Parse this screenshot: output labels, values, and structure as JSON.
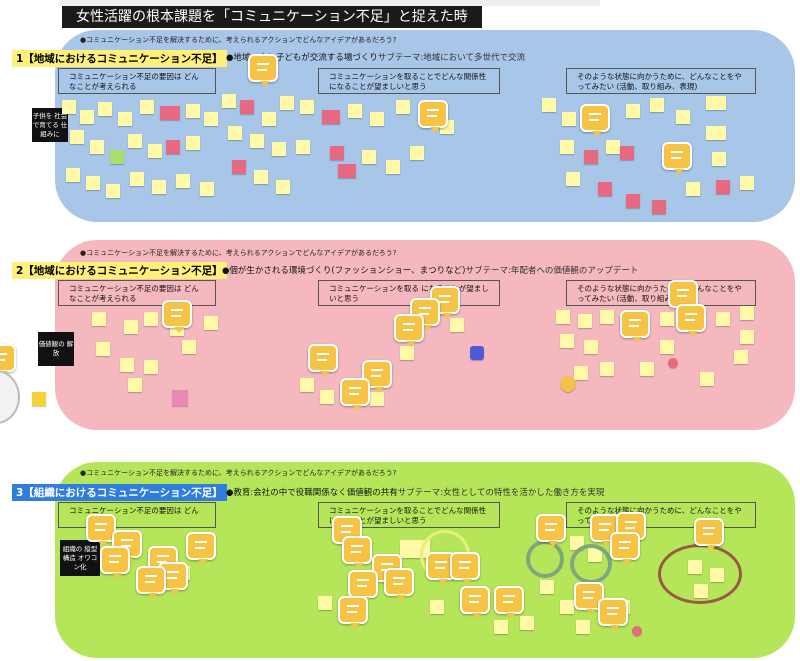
{
  "header": {
    "title": "女性活躍の根本課題を「コミュニケーション不足」と捉えた時"
  },
  "sections": [
    {
      "label": "1【地域におけるコミュニケーション不足】",
      "question": "●コミュニケーション不足を解決するために、考えられるアクションでどんなアイデアがあるだろう?",
      "theme": "●地域の人と子どもが交流する場づくり",
      "subtheme": "サブテーマ:地域において多世代で交流",
      "box1": "コミュニケーション不足の要因は どんなことが考えられる",
      "box2": "コミュニケーションを取ることでどんな関係性 になることが望ましいと思う",
      "box3": "そのような状態に向かうために、どんなことをやってみたい (活動、取り組み、表現)",
      "side_note": "子供を 社会で育てる 仕組みに"
    },
    {
      "label": "2【地域におけるコミュニケーション不足】",
      "question": "●コミュニケーション不足を解決するために、考えられるアクションでどんなアイデアがあるだろう?",
      "theme": "●個が生かされる環境づくり(ファッションショー、まつりなど)",
      "subtheme": "サブテーマ:年配者への価値観のアップデート",
      "box1": "コミュニケーション不足の要因は どんなことが考えられる",
      "box2": "コミュニケーションを取る になることが望ましいと思う",
      "box3": "そのような状態に向かうために、どんなことをやってみたい (活動、取り組み、表現)",
      "side_note": "価値観の 解放"
    },
    {
      "label": "3【組織におけるコミュニケーション不足】",
      "question": "●コミュニケーション不足を解決するために、考えられるアクションでどんなアイデアがあるだろう?",
      "theme": "●教育:会社の中で役職関係なく価値観の共有",
      "subtheme": "サブテーマ:女性としての特性を活かした働き方を実現",
      "box1": "コミュニケーション不足の要因は どん",
      "box2": "コミュニケーションを取ることでどんな関係性 になることが望ましいと思う",
      "box3": "そのような状態に向かうために、どんなことをやってみたい",
      "side_note": "組織の 縦型構造 オワコン化"
    }
  ],
  "colors": {
    "panel1": "#a8c6e8",
    "panel2": "#f4b8be",
    "panel3": "#b5e65a",
    "sticky_yellow": "#fff9a8",
    "sticky_pink": "#e86a82",
    "comment_bubble": "#f6c345"
  },
  "icons": [
    "comment-bubble-icon",
    "sticky-note"
  ]
}
